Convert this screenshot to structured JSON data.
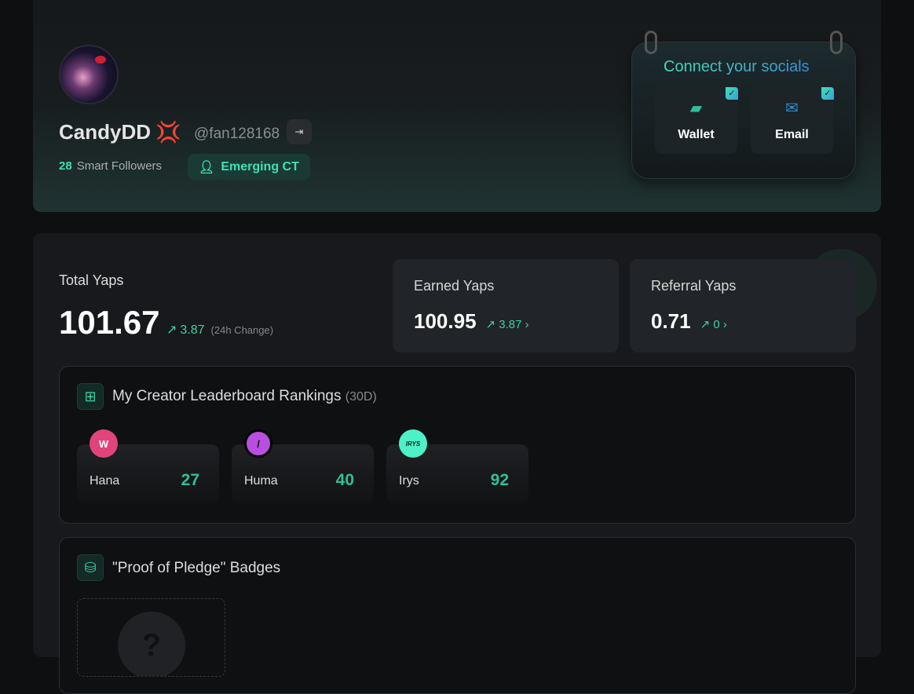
{
  "profile": {
    "name": "CandyDD",
    "handle": "@fan128168",
    "smart_followers": "28",
    "smart_followers_label": "Smart Followers",
    "badge": "Emerging CT"
  },
  "socials": {
    "title": "Connect your socials",
    "items": [
      {
        "label": "Wallet",
        "connected": true
      },
      {
        "label": "Email",
        "connected": true
      }
    ]
  },
  "yaps": {
    "total_label": "Total Yaps",
    "total": "101.67",
    "total_change": "3.87",
    "change_note": "(24h Change)",
    "earned_label": "Earned Yaps",
    "earned": "100.95",
    "earned_change": "3.87",
    "referral_label": "Referral Yaps",
    "referral": "0.71",
    "referral_change": "0"
  },
  "rankings": {
    "title": "My Creator Leaderboard Rankings",
    "period": "(30D)",
    "items": [
      {
        "name": "Hana",
        "rank": "27",
        "logo": "W",
        "color": "#e0447a"
      },
      {
        "name": "Huma",
        "rank": "40",
        "logo": "/",
        "color": "#b84fe0"
      },
      {
        "name": "Irys",
        "rank": "92",
        "logo": "IRYS",
        "color": "#4ef0c8"
      }
    ]
  },
  "pledge": {
    "title": "\"Proof of Pledge\" Badges",
    "placeholder": "?"
  },
  "colors": {
    "accent": "#3fe0b5"
  }
}
